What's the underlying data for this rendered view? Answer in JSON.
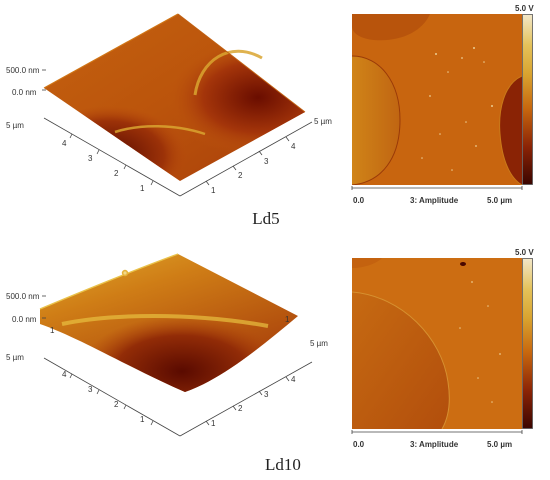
{
  "top": {
    "z_label": "500.0 nm",
    "zero_label": "0.0 nm",
    "axis_a_label": "5 µm",
    "axis_a_ticks": [
      "4",
      "3",
      "2",
      "1"
    ],
    "axis_b_label": "5 µm",
    "axis_b_ticks": [
      "4",
      "3",
      "2",
      "1"
    ],
    "scale_max": "5.0 V",
    "x_start": "0.0",
    "channel": "3: Amplitude",
    "x_end": "5.0 µm",
    "caption": "Ld5"
  },
  "bottom": {
    "z_label": "500.0 nm",
    "zero_label": "0.0 nm",
    "axis_a_label": "5 µm",
    "axis_a_ticks": [
      "1",
      "4",
      "3",
      "2",
      "1"
    ],
    "axis_b_label": "5 µm",
    "axis_b_ticks": [
      "1",
      "4",
      "3",
      "2",
      "1"
    ],
    "scale_max": "5.0 V",
    "x_start": "0.0",
    "channel": "3: Amplitude",
    "x_end": "5.0 µm",
    "caption": "Ld10"
  },
  "colors": {
    "dark": "#5a0a00",
    "mid": "#b7440a",
    "orange": "#c8680f",
    "light": "#d9a430",
    "highlight": "#f2e7c9"
  }
}
